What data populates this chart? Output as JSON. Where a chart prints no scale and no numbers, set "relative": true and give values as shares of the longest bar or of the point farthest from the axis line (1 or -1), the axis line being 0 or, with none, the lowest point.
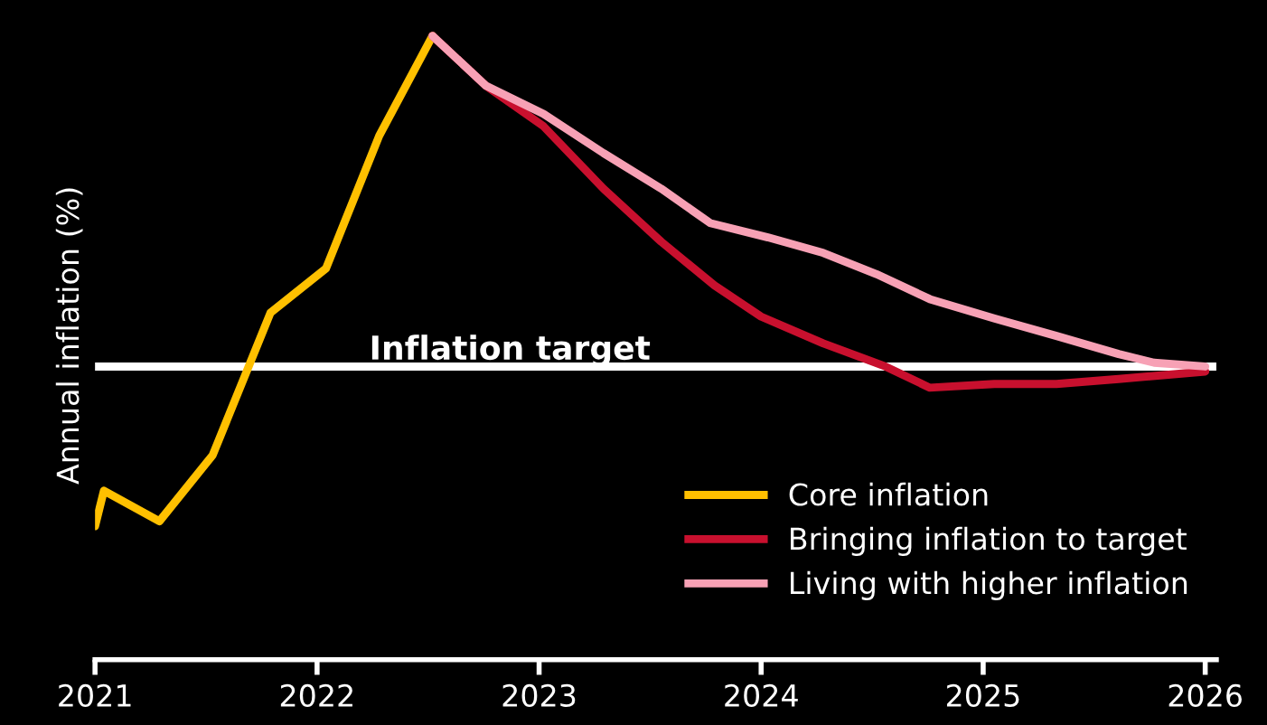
{
  "chart_data": {
    "type": "line",
    "relative": true,
    "ylabel": "Annual inflation (%)",
    "xlim": [
      2021,
      2026.05
    ],
    "xticks": [
      2021,
      2022,
      2023,
      2024,
      2025,
      2026
    ],
    "series": [
      {
        "name": "Core inflation",
        "color": "#ffc000",
        "x": [
          2021.0,
          2021.04,
          2021.29,
          2021.53,
          2021.79,
          2022.04,
          2022.28,
          2022.52
        ],
        "values": [
          0.214,
          0.271,
          0.222,
          0.328,
          0.556,
          0.627,
          0.84,
          1.0
        ]
      },
      {
        "name": "Bringing inflation to target",
        "color": "#c8102e",
        "x": [
          2022.52,
          2022.76,
          2023.02,
          2023.29,
          2023.55,
          2023.79,
          2024.0,
          2024.28,
          2024.56,
          2024.76,
          2025.05,
          2025.33,
          2025.61,
          2026.0
        ],
        "values": [
          1.0,
          0.92,
          0.855,
          0.755,
          0.67,
          0.6,
          0.55,
          0.507,
          0.47,
          0.436,
          0.442,
          0.442,
          0.45,
          0.462
        ]
      },
      {
        "name": "Living with higher inflation",
        "color": "#f7a1b5",
        "x": [
          2022.52,
          2022.76,
          2023.02,
          2023.29,
          2023.55,
          2023.77,
          2024.03,
          2024.28,
          2024.52,
          2024.76,
          2025.05,
          2025.33,
          2025.61,
          2025.77,
          2026.0
        ],
        "values": [
          1.0,
          0.92,
          0.875,
          0.812,
          0.755,
          0.7,
          0.677,
          0.652,
          0.618,
          0.578,
          0.547,
          0.519,
          0.49,
          0.476,
          0.47
        ]
      }
    ],
    "ref_lines": [
      {
        "axis": "y",
        "value": 0.47,
        "label": "Inflation target",
        "color": "#ffffff"
      }
    ],
    "legend": "bottom right",
    "grid": false,
    "marker": "none",
    "line_style": "solid"
  }
}
